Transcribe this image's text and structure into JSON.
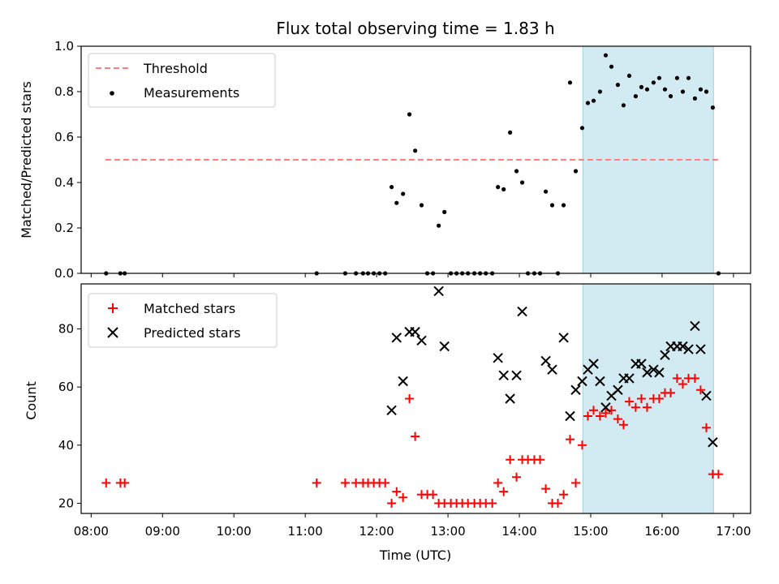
{
  "chart_data": {
    "title": "Flux total observing time = 1.83 h",
    "xlabel": "Time (UTC)",
    "x_tick_labels": [
      "08:00",
      "09:00",
      "10:00",
      "11:00",
      "12:00",
      "13:00",
      "14:00",
      "15:00",
      "16:00",
      "17:00"
    ],
    "x_ticks_hours": [
      8,
      9,
      10,
      11,
      12,
      13,
      14,
      15,
      16,
      17
    ],
    "xlim_hours": [
      7.86,
      17.24
    ],
    "shaded_interval_hours": [
      14.89,
      16.72
    ],
    "panels": [
      {
        "type": "scatter",
        "ylabel": "Matched/Predicted stars",
        "ylim": [
          0,
          1.0
        ],
        "y_ticks": [
          0.0,
          0.2,
          0.4,
          0.6,
          0.8,
          1.0
        ],
        "y_tick_labels": [
          "0.0",
          "0.2",
          "0.4",
          "0.6",
          "0.8",
          "1.0"
        ],
        "threshold": {
          "name": "Threshold",
          "value": 0.5,
          "x_range_hours": [
            8.2,
            16.8
          ],
          "color": "#ff7f7f"
        },
        "series": [
          {
            "name": "Measurements",
            "color": "#000000",
            "points": [
              [
                8.21,
                0.0
              ],
              [
                8.41,
                0.0
              ],
              [
                8.47,
                0.0
              ],
              [
                11.16,
                0.0
              ],
              [
                11.56,
                0.0
              ],
              [
                11.71,
                0.0
              ],
              [
                11.81,
                0.0
              ],
              [
                11.88,
                0.0
              ],
              [
                11.96,
                0.0
              ],
              [
                12.04,
                0.0
              ],
              [
                12.12,
                0.0
              ],
              [
                12.21,
                0.38
              ],
              [
                12.28,
                0.31
              ],
              [
                12.37,
                0.35
              ],
              [
                12.46,
                0.7
              ],
              [
                12.54,
                0.54
              ],
              [
                12.63,
                0.3
              ],
              [
                12.71,
                0.0
              ],
              [
                12.79,
                0.0
              ],
              [
                12.87,
                0.21
              ],
              [
                12.95,
                0.27
              ],
              [
                13.04,
                0.0
              ],
              [
                13.12,
                0.0
              ],
              [
                13.2,
                0.0
              ],
              [
                13.28,
                0.0
              ],
              [
                13.37,
                0.0
              ],
              [
                13.45,
                0.0
              ],
              [
                13.53,
                0.0
              ],
              [
                13.62,
                0.0
              ],
              [
                13.7,
                0.38
              ],
              [
                13.78,
                0.37
              ],
              [
                13.87,
                0.62
              ],
              [
                13.96,
                0.45
              ],
              [
                14.04,
                0.4
              ],
              [
                14.12,
                0.0
              ],
              [
                14.21,
                0.0
              ],
              [
                14.29,
                0.0
              ],
              [
                14.37,
                0.36
              ],
              [
                14.46,
                0.3
              ],
              [
                14.54,
                0.0
              ],
              [
                14.62,
                0.3
              ],
              [
                14.71,
                0.84
              ],
              [
                14.79,
                0.45
              ],
              [
                14.88,
                0.64
              ],
              [
                14.96,
                0.75
              ],
              [
                15.04,
                0.76
              ],
              [
                15.13,
                0.8
              ],
              [
                15.21,
                0.96
              ],
              [
                15.29,
                0.91
              ],
              [
                15.38,
                0.83
              ],
              [
                15.46,
                0.74
              ],
              [
                15.54,
                0.87
              ],
              [
                15.63,
                0.78
              ],
              [
                15.71,
                0.82
              ],
              [
                15.79,
                0.81
              ],
              [
                15.88,
                0.84
              ],
              [
                15.96,
                0.86
              ],
              [
                16.04,
                0.81
              ],
              [
                16.12,
                0.78
              ],
              [
                16.21,
                0.86
              ],
              [
                16.29,
                0.8
              ],
              [
                16.37,
                0.86
              ],
              [
                16.46,
                0.77
              ],
              [
                16.54,
                0.81
              ],
              [
                16.62,
                0.8
              ],
              [
                16.71,
                0.73
              ],
              [
                16.79,
                0.0
              ]
            ]
          }
        ],
        "legend_location": "top-left"
      },
      {
        "type": "scatter",
        "ylabel": "Count",
        "ylim": [
          16.5,
          95.5
        ],
        "y_ticks": [
          20,
          40,
          60,
          80
        ],
        "y_tick_labels": [
          "20",
          "40",
          "60",
          "80"
        ],
        "series": [
          {
            "name": "Matched stars",
            "marker": "plus",
            "color": "#ff0000",
            "points": [
              [
                8.21,
                27
              ],
              [
                8.41,
                27
              ],
              [
                8.47,
                27
              ],
              [
                11.16,
                27
              ],
              [
                11.56,
                27
              ],
              [
                11.71,
                27
              ],
              [
                11.81,
                27
              ],
              [
                11.88,
                27
              ],
              [
                11.96,
                27
              ],
              [
                12.04,
                27
              ],
              [
                12.12,
                27
              ],
              [
                12.21,
                20
              ],
              [
                12.28,
                24
              ],
              [
                12.37,
                22
              ],
              [
                12.46,
                56
              ],
              [
                12.54,
                43
              ],
              [
                12.63,
                23
              ],
              [
                12.71,
                23
              ],
              [
                12.79,
                23
              ],
              [
                12.87,
                20
              ],
              [
                12.95,
                20
              ],
              [
                13.04,
                20
              ],
              [
                13.12,
                20
              ],
              [
                13.2,
                20
              ],
              [
                13.28,
                20
              ],
              [
                13.37,
                20
              ],
              [
                13.45,
                20
              ],
              [
                13.53,
                20
              ],
              [
                13.62,
                20
              ],
              [
                13.7,
                27
              ],
              [
                13.78,
                24
              ],
              [
                13.87,
                35
              ],
              [
                13.96,
                29
              ],
              [
                14.04,
                35
              ],
              [
                14.12,
                35
              ],
              [
                14.21,
                35
              ],
              [
                14.29,
                35
              ],
              [
                14.37,
                25
              ],
              [
                14.46,
                20
              ],
              [
                14.54,
                20
              ],
              [
                14.62,
                23
              ],
              [
                14.71,
                42
              ],
              [
                14.79,
                27
              ],
              [
                14.88,
                40
              ],
              [
                14.96,
                50
              ],
              [
                15.04,
                52
              ],
              [
                15.13,
                50
              ],
              [
                15.21,
                51
              ],
              [
                15.29,
                52
              ],
              [
                15.38,
                49
              ],
              [
                15.46,
                47
              ],
              [
                15.54,
                55
              ],
              [
                15.63,
                53
              ],
              [
                15.71,
                56
              ],
              [
                15.79,
                53
              ],
              [
                15.88,
                56
              ],
              [
                15.96,
                56
              ],
              [
                16.04,
                58
              ],
              [
                16.12,
                58
              ],
              [
                16.21,
                63
              ],
              [
                16.29,
                61
              ],
              [
                16.37,
                63
              ],
              [
                16.46,
                63
              ],
              [
                16.54,
                59
              ],
              [
                16.62,
                46
              ],
              [
                16.71,
                30
              ],
              [
                16.79,
                30
              ]
            ]
          },
          {
            "name": "Predicted stars",
            "marker": "x",
            "color": "#000000",
            "points": [
              [
                12.21,
                52
              ],
              [
                12.28,
                77
              ],
              [
                12.37,
                62
              ],
              [
                12.46,
                79
              ],
              [
                12.54,
                79
              ],
              [
                12.63,
                76
              ],
              [
                12.87,
                93
              ],
              [
                12.95,
                74
              ],
              [
                13.7,
                70
              ],
              [
                13.78,
                64
              ],
              [
                13.87,
                56
              ],
              [
                13.96,
                64
              ],
              [
                14.04,
                86
              ],
              [
                14.37,
                69
              ],
              [
                14.46,
                66
              ],
              [
                14.62,
                77
              ],
              [
                14.71,
                50
              ],
              [
                14.79,
                59
              ],
              [
                14.88,
                62
              ],
              [
                14.96,
                66
              ],
              [
                15.04,
                68
              ],
              [
                15.13,
                62
              ],
              [
                15.21,
                53
              ],
              [
                15.29,
                57
              ],
              [
                15.38,
                59
              ],
              [
                15.46,
                63
              ],
              [
                15.54,
                63
              ],
              [
                15.63,
                68
              ],
              [
                15.71,
                68
              ],
              [
                15.79,
                65
              ],
              [
                15.88,
                66
              ],
              [
                15.96,
                65
              ],
              [
                16.04,
                71
              ],
              [
                16.12,
                74
              ],
              [
                16.21,
                74
              ],
              [
                16.29,
                74
              ],
              [
                16.37,
                73
              ],
              [
                16.46,
                81
              ],
              [
                16.54,
                73
              ],
              [
                16.62,
                57
              ],
              [
                16.71,
                41
              ]
            ]
          }
        ],
        "legend_location": "top-left"
      }
    ]
  }
}
